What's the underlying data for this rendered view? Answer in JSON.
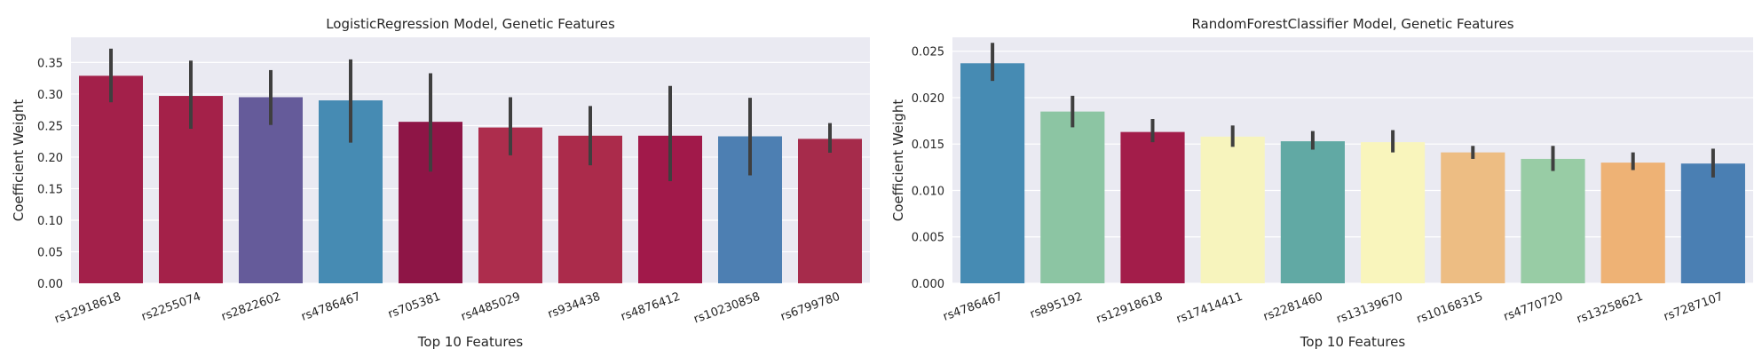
{
  "chart_data": [
    {
      "type": "bar",
      "title": "LogisticRegression Model, Genetic Features",
      "xlabel": "Top 10 Features",
      "ylabel": "Coefficient Weight",
      "ylim": [
        0,
        0.39
      ],
      "yticks": [
        "0.00",
        "0.05",
        "0.10",
        "0.15",
        "0.20",
        "0.25",
        "0.30",
        "0.35"
      ],
      "ytick_values": [
        0,
        0.05,
        0.1,
        0.15,
        0.2,
        0.25,
        0.3,
        0.35
      ],
      "grid": true,
      "categories": [
        "rs12918618",
        "rs2255074",
        "rs2822602",
        "rs4786467",
        "rs705381",
        "rs4485029",
        "rs934438",
        "rs4876412",
        "rs10230858",
        "rs6799780"
      ],
      "values": [
        0.329,
        0.297,
        0.295,
        0.29,
        0.256,
        0.247,
        0.234,
        0.234,
        0.233,
        0.229
      ],
      "error_low": [
        0.287,
        0.245,
        0.251,
        0.223,
        0.177,
        0.203,
        0.187,
        0.162,
        0.171,
        0.207
      ],
      "error_high": [
        0.372,
        0.353,
        0.338,
        0.355,
        0.333,
        0.295,
        0.281,
        0.313,
        0.294,
        0.254
      ],
      "colors": [
        "#a3204a",
        "#a42149",
        "#655b9a",
        "#468bb3",
        "#8e1546",
        "#ad2d4d",
        "#ab2b4b",
        "#a1194a",
        "#4d7fb2",
        "#a62b4b"
      ]
    },
    {
      "type": "bar",
      "title": "RandomForestClassifier Model, Genetic Features",
      "xlabel": "Top 10 Features",
      "ylabel": "Coefficient Weight",
      "ylim": [
        0,
        0.0265
      ],
      "yticks": [
        "0.000",
        "0.005",
        "0.010",
        "0.015",
        "0.020",
        "0.025"
      ],
      "ytick_values": [
        0,
        0.005,
        0.01,
        0.015,
        0.02,
        0.025
      ],
      "grid": true,
      "categories": [
        "rs4786467",
        "rs895192",
        "rs12918618",
        "rs17414411",
        "rs2281460",
        "rs13139670",
        "rs10168315",
        "rs4770720",
        "rs13258621",
        "rs7287107"
      ],
      "values": [
        0.0237,
        0.0185,
        0.0163,
        0.0158,
        0.0153,
        0.0152,
        0.0141,
        0.0134,
        0.013,
        0.0129
      ],
      "error_low": [
        0.0218,
        0.0168,
        0.0152,
        0.0147,
        0.0144,
        0.0141,
        0.0134,
        0.0121,
        0.0122,
        0.0114
      ],
      "error_high": [
        0.0259,
        0.0202,
        0.0177,
        0.017,
        0.0164,
        0.0165,
        0.0148,
        0.0148,
        0.0141,
        0.0145
      ],
      "colors": [
        "#468bb3",
        "#8cc5a3",
        "#a31d4a",
        "#f7f4bd",
        "#61a9a4",
        "#f9f5bc",
        "#edbd83",
        "#98cca5",
        "#eeb275",
        "#4a7fb3"
      ]
    }
  ]
}
